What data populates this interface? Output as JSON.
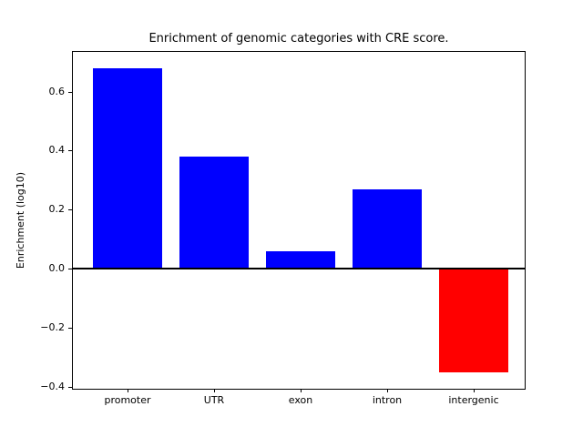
{
  "figure": {
    "background_color": "#ffffff",
    "text_color": "#000000"
  },
  "chart_data": {
    "type": "bar",
    "title": "Enrichment of genomic categories with CRE score.",
    "xlabel": "",
    "ylabel": "Enrichment (log10)",
    "categories": [
      "promoter",
      "UTR",
      "exon",
      "intron",
      "intergenic"
    ],
    "values": [
      0.68,
      0.38,
      0.06,
      0.27,
      -0.35
    ],
    "bar_colors": [
      "#0000ff",
      "#0000ff",
      "#0000ff",
      "#0000ff",
      "#ff0000"
    ],
    "positive_color": "#0000ff",
    "negative_color": "#ff0000",
    "bar_width": 0.8,
    "ylim": [
      -0.405,
      0.734
    ],
    "xlim": [
      -0.64,
      4.64
    ],
    "yticks": [
      {
        "value": -0.4,
        "label": "−0.4"
      },
      {
        "value": -0.2,
        "label": "−0.2"
      },
      {
        "value": 0.0,
        "label": "0.0"
      },
      {
        "value": 0.2,
        "label": "0.2"
      },
      {
        "value": 0.4,
        "label": "0.4"
      },
      {
        "value": 0.6,
        "label": "0.6"
      }
    ],
    "grid": false,
    "legend": null,
    "zero_line": {
      "value": 0.0,
      "color": "#000000"
    }
  }
}
